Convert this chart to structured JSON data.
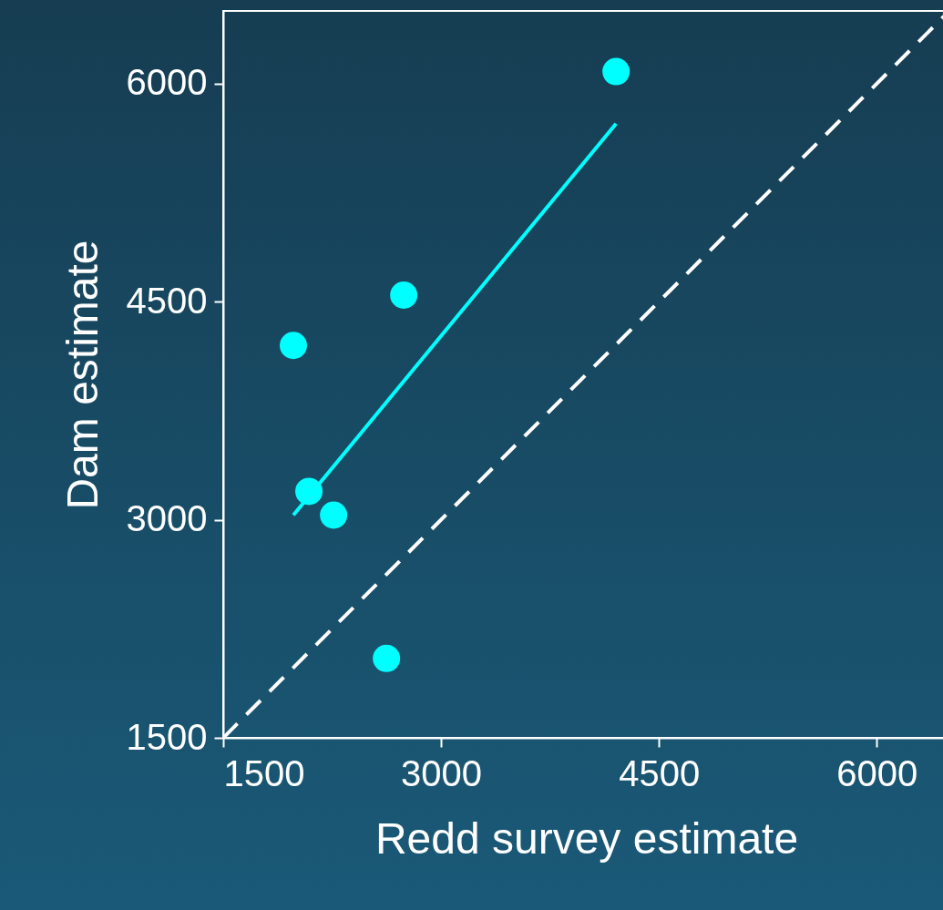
{
  "chart_data": {
    "type": "scatter",
    "xlabel": "Redd survey estimate",
    "ylabel": "Dam estimate",
    "xlim": [
      1500,
      6500
    ],
    "ylim": [
      1500,
      6500
    ],
    "xticks": [
      1500,
      3000,
      4500,
      6000
    ],
    "yticks": [
      1500,
      3000,
      4500,
      6000
    ],
    "grid": false,
    "marker": "circle",
    "series": [
      {
        "color": "#00ffff",
        "x": [
          1983,
          2090,
          2260,
          2743,
          2624,
          4205
        ],
        "values": [
          4199,
          3195,
          3032,
          4545,
          2046,
          6083
        ]
      },
      {
        "type": "line",
        "color": "#00ffff",
        "line_style": "solid",
        "marker": "none",
        "x": [
          1983,
          4205
        ],
        "values": [
          3032,
          5725
        ]
      },
      {
        "type": "line",
        "color": "#ffffff",
        "line_style": "dashed",
        "marker": "none",
        "x": [
          1500,
          6500
        ],
        "values": [
          1500,
          6500
        ]
      }
    ]
  }
}
